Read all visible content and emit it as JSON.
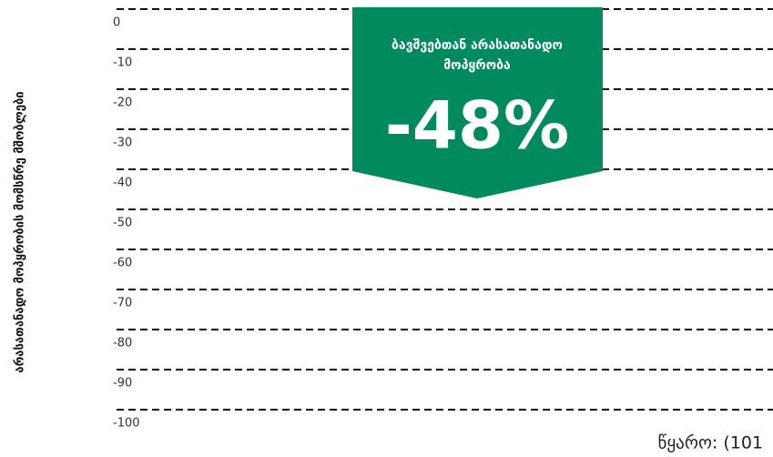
{
  "chart_data": {
    "type": "bar",
    "y_axis_label": "არასათანადო მოპყრობის მომსწრე მშობლები",
    "ylim": [
      -100,
      0
    ],
    "yticks": [
      0,
      -10,
      -20,
      -30,
      -40,
      -50,
      -60,
      -70,
      -80,
      -90,
      -100
    ],
    "grid": true,
    "annotation": {
      "label_lines": [
        "ბავშვებთან არასათანადო",
        "მოპყრობა"
      ],
      "value": -48,
      "value_label": "-48%",
      "color": "#008a5e"
    },
    "source": "წყარო: (101"
  }
}
